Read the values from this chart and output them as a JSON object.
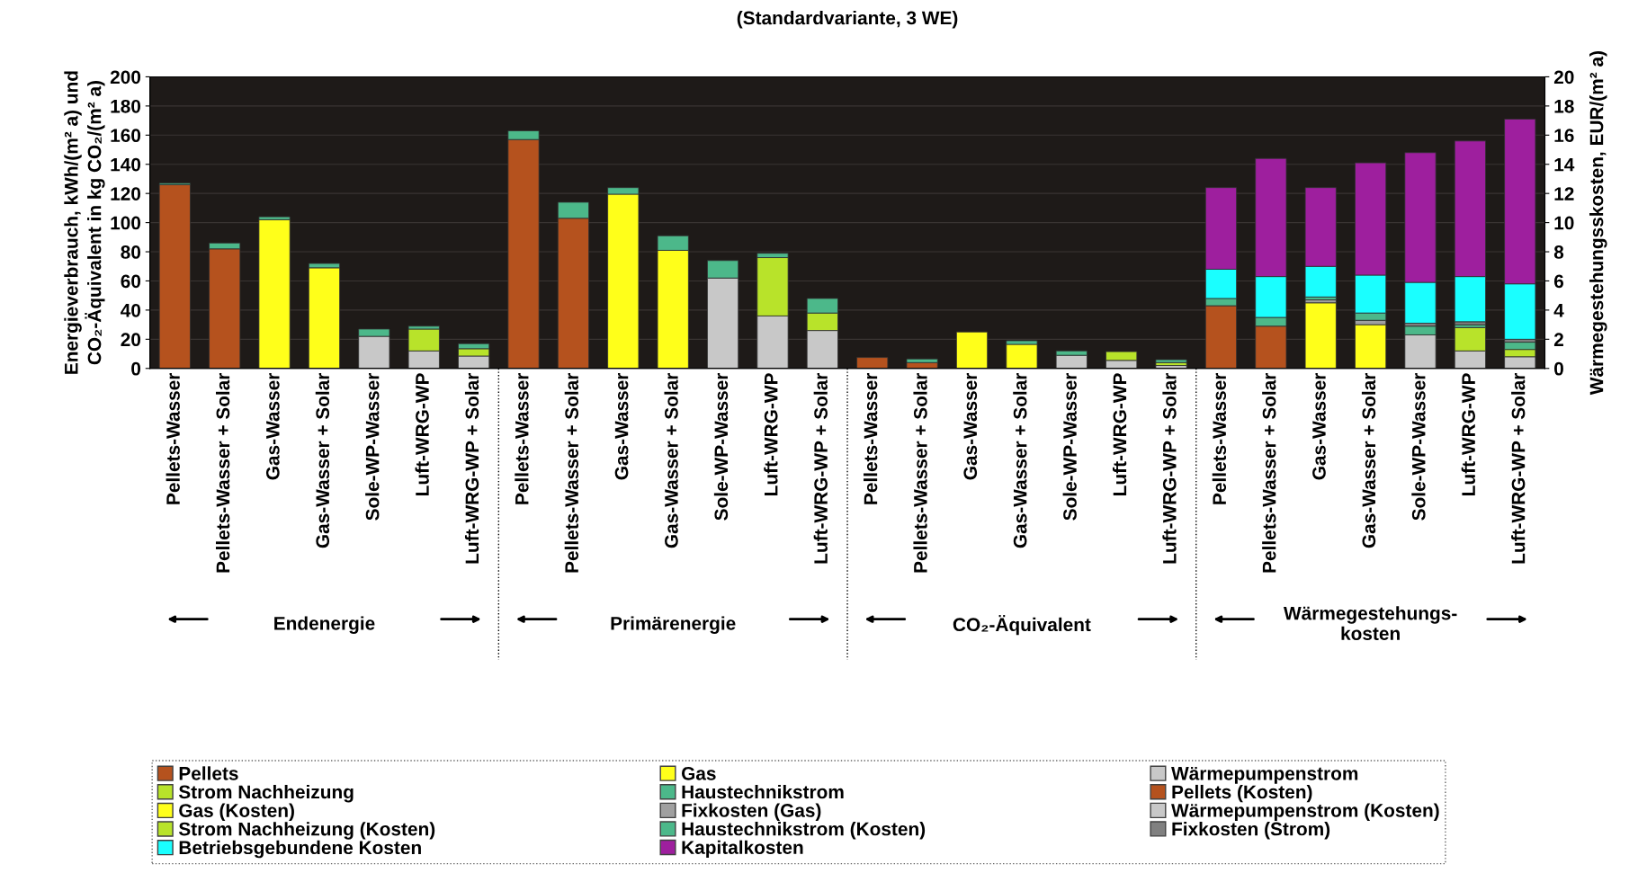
{
  "chart_data": {
    "type": "bar",
    "stacked": true,
    "title": "(Standardvariante, 3 WE)",
    "ylabel": "Energieverbrauch, kWh/(m² a) und\nCO₂-Äquivalent in kg CO₂/(m² a)",
    "y2label": "Wärmegestehungsskosten, EUR/(m² a)",
    "categories": [
      "Pellets-Wasser",
      "Pellets-Wasser + Solar",
      "Gas-Wasser",
      "Gas-Wasser + Solar",
      "Sole-WP-Wasser",
      "Luft-WRG-WP",
      "Luft-WRG-WP + Solar",
      "Pellets-Wasser",
      "Pellets-Wasser + Solar",
      "Gas-Wasser",
      "Gas-Wasser + Solar",
      "Sole-WP-Wasser",
      "Luft-WRG-WP",
      "Luft-WRG-WP + Solar",
      "Pellets-Wasser",
      "Pellets-Wasser + Solar",
      "Gas-Wasser",
      "Gas-Wasser + Solar",
      "Sole-WP-Wasser",
      "Luft-WRG-WP",
      "Luft-WRG-WP + Solar",
      "Pellets-Wasser",
      "Pellets-Wasser + Solar",
      "Gas-Wasser",
      "Gas-Wasser + Solar",
      "Sole-WP-Wasser",
      "Luft-WRG-WP",
      "Luft-WRG-WP + Solar"
    ],
    "ylim": [
      0,
      200
    ],
    "yticks": [
      0,
      20,
      40,
      60,
      80,
      100,
      120,
      140,
      160,
      180,
      200
    ],
    "y2lim": [
      0,
      20
    ],
    "y2ticks": [
      0,
      2,
      4,
      6,
      8,
      10,
      12,
      14,
      16,
      18,
      20
    ],
    "grid": "y",
    "legend": "bottom",
    "annotations": [
      "Endenergie",
      "Primärenergie",
      "CO₂-Äquivalent",
      "Wärmegestehungs-\nkosten"
    ],
    "series": [
      {
        "name": "Pellets",
        "color": "#b5521e",
        "values": [
          126,
          82,
          null,
          null,
          null,
          null,
          null,
          157,
          103,
          null,
          null,
          null,
          null,
          null,
          7.5,
          4,
          null,
          null,
          null,
          null,
          null,
          null,
          null,
          null,
          null,
          null,
          null,
          null
        ]
      },
      {
        "name": "Gas",
        "color": "#ffff1a",
        "values": [
          null,
          null,
          102,
          69,
          null,
          null,
          null,
          null,
          null,
          119.5,
          81,
          null,
          null,
          null,
          null,
          null,
          25,
          16.5,
          null,
          null,
          null,
          null,
          null,
          null,
          null,
          null,
          null,
          null
        ]
      },
      {
        "name": "Wärmepumpenstrom",
        "color": "#c8c8c8",
        "values": [
          null,
          null,
          null,
          null,
          22,
          12,
          8.5,
          null,
          null,
          null,
          null,
          62,
          36,
          26,
          null,
          null,
          null,
          null,
          9,
          5.5,
          2,
          null,
          null,
          null,
          null,
          null,
          null,
          null
        ]
      },
      {
        "name": "Strom Nachheizung",
        "color": "#b8e32a",
        "values": [
          null,
          null,
          null,
          null,
          null,
          15,
          5,
          null,
          null,
          null,
          null,
          null,
          40,
          12,
          null,
          null,
          null,
          null,
          null,
          6,
          2,
          null,
          null,
          null,
          null,
          null,
          null,
          null
        ]
      },
      {
        "name": "Haustechnikstrom",
        "color": "#4cb88a",
        "values": [
          1,
          4,
          2,
          3,
          5,
          2,
          3.5,
          6,
          11,
          4.5,
          10,
          12,
          3,
          10,
          null,
          2.5,
          null,
          2.5,
          3,
          null,
          2,
          null,
          null,
          null,
          null,
          null,
          null,
          null
        ]
      },
      {
        "name": "Pellets (Kosten)",
        "color": "#b5521e",
        "axis": "y2",
        "values": [
          null,
          null,
          null,
          null,
          null,
          null,
          null,
          null,
          null,
          null,
          null,
          null,
          null,
          null,
          null,
          null,
          null,
          null,
          null,
          null,
          null,
          4.3,
          2.9,
          null,
          null,
          null,
          null,
          null
        ]
      },
      {
        "name": "Gas (Kosten)",
        "color": "#ffff1a",
        "axis": "y2",
        "values": [
          null,
          null,
          null,
          null,
          null,
          null,
          null,
          null,
          null,
          null,
          null,
          null,
          null,
          null,
          null,
          null,
          null,
          null,
          null,
          null,
          null,
          null,
          null,
          4.5,
          3.0,
          null,
          null,
          null
        ]
      },
      {
        "name": "Fixkosten (Gas)",
        "color": "#a0a0a0",
        "axis": "y2",
        "values": [
          null,
          null,
          null,
          null,
          null,
          null,
          null,
          null,
          null,
          null,
          null,
          null,
          null,
          null,
          null,
          null,
          null,
          null,
          null,
          null,
          null,
          null,
          null,
          0.2,
          0.3,
          null,
          null,
          null
        ]
      },
      {
        "name": "Wärmepumpenstrom (Kosten)",
        "color": "#c8c8c8",
        "axis": "y2",
        "values": [
          null,
          null,
          null,
          null,
          null,
          null,
          null,
          null,
          null,
          null,
          null,
          null,
          null,
          null,
          null,
          null,
          null,
          null,
          null,
          null,
          null,
          null,
          null,
          null,
          null,
          2.3,
          1.2,
          0.8
        ]
      },
      {
        "name": "Strom Nachheizung (Kosten)",
        "color": "#b8e32a",
        "axis": "y2",
        "values": [
          null,
          null,
          null,
          null,
          null,
          null,
          null,
          null,
          null,
          null,
          null,
          null,
          null,
          null,
          null,
          null,
          null,
          null,
          null,
          null,
          null,
          null,
          null,
          null,
          null,
          null,
          1.6,
          0.5
        ]
      },
      {
        "name": "Haustechnikstrom (Kosten)",
        "color": "#4cb88a",
        "axis": "y2",
        "values": [
          null,
          null,
          null,
          null,
          null,
          null,
          null,
          null,
          null,
          null,
          null,
          null,
          null,
          null,
          null,
          null,
          null,
          null,
          null,
          null,
          null,
          0.5,
          0.6,
          0.2,
          0.5,
          0.6,
          0.2,
          0.5
        ]
      },
      {
        "name": "Fixkosten (Strom)",
        "color": "#808080",
        "axis": "y2",
        "values": [
          null,
          null,
          null,
          null,
          null,
          null,
          null,
          null,
          null,
          null,
          null,
          null,
          null,
          null,
          null,
          null,
          null,
          null,
          null,
          null,
          null,
          null,
          null,
          null,
          null,
          0.2,
          0.2,
          0.2
        ]
      },
      {
        "name": "Betriebsgebundene Kosten",
        "color": "#1affff",
        "axis": "y2",
        "values": [
          null,
          null,
          null,
          null,
          null,
          null,
          null,
          null,
          null,
          null,
          null,
          null,
          null,
          null,
          null,
          null,
          null,
          null,
          null,
          null,
          null,
          2.0,
          2.8,
          2.1,
          2.6,
          2.8,
          3.1,
          3.8
        ]
      },
      {
        "name": "Kapitalkosten",
        "color": "#9e1f9e",
        "axis": "y2",
        "values": [
          null,
          null,
          null,
          null,
          null,
          null,
          null,
          null,
          null,
          null,
          null,
          null,
          null,
          null,
          null,
          null,
          null,
          null,
          null,
          null,
          null,
          5.6,
          8.1,
          5.4,
          7.7,
          8.9,
          9.3,
          11.3
        ]
      }
    ]
  }
}
